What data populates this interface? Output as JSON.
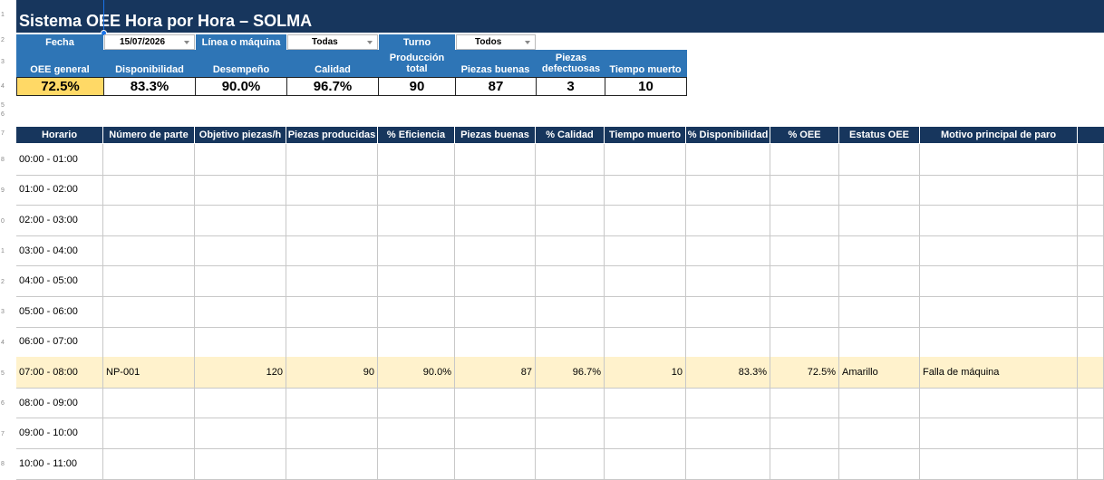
{
  "title": "Sistema OEE Hora por Hora – SOLMA",
  "filters": {
    "fecha_label": "Fecha",
    "fecha_value": "15/07/2026",
    "linea_label": "Línea o máquina",
    "linea_value": "Todas",
    "turno_label": "Turno",
    "turno_value": "Todos"
  },
  "kpis": [
    {
      "label": "OEE general",
      "value": "72.5%"
    },
    {
      "label": "Disponibilidad",
      "value": "83.3%"
    },
    {
      "label": "Desempeño",
      "value": "90.0%"
    },
    {
      "label": "Calidad",
      "value": "96.7%"
    },
    {
      "label": "Producción total",
      "value": "90"
    },
    {
      "label": "Piezas buenas",
      "value": "87"
    },
    {
      "label": "Piezas defectuosas",
      "value": "3"
    },
    {
      "label": "Tiempo muerto",
      "value": "10"
    }
  ],
  "colors": {
    "navy": "#17365d",
    "blue": "#2e75b6",
    "oee_yellow": "#ffd966",
    "row_highlight": "#fff2cc"
  },
  "table": {
    "headers": [
      "Horario",
      "Número de parte",
      "Objetivo piezas/h",
      "Piezas producidas",
      "% Eficiencia",
      "Piezas buenas",
      "% Calidad",
      "Tiempo muerto",
      "% Disponibilidad",
      "% OEE",
      "Estatus OEE",
      "Motivo principal de paro"
    ],
    "rows": [
      [
        "00:00 - 01:00",
        "",
        "",
        "",
        "",
        "",
        "",
        "",
        "",
        "",
        "",
        ""
      ],
      [
        "01:00 - 02:00",
        "",
        "",
        "",
        "",
        "",
        "",
        "",
        "",
        "",
        "",
        ""
      ],
      [
        "02:00 - 03:00",
        "",
        "",
        "",
        "",
        "",
        "",
        "",
        "",
        "",
        "",
        ""
      ],
      [
        "03:00 - 04:00",
        "",
        "",
        "",
        "",
        "",
        "",
        "",
        "",
        "",
        "",
        ""
      ],
      [
        "04:00 - 05:00",
        "",
        "",
        "",
        "",
        "",
        "",
        "",
        "",
        "",
        "",
        ""
      ],
      [
        "05:00 - 06:00",
        "",
        "",
        "",
        "",
        "",
        "",
        "",
        "",
        "",
        "",
        ""
      ],
      [
        "06:00 - 07:00",
        "",
        "",
        "",
        "",
        "",
        "",
        "",
        "",
        "",
        "",
        ""
      ],
      [
        "07:00 - 08:00",
        "NP-001",
        "120",
        "90",
        "90.0%",
        "87",
        "96.7%",
        "10",
        "83.3%",
        "72.5%",
        "Amarillo",
        "Falla de máquina"
      ],
      [
        "08:00 - 09:00",
        "",
        "",
        "",
        "",
        "",
        "",
        "",
        "",
        "",
        "",
        ""
      ],
      [
        "09:00 - 10:00",
        "",
        "",
        "",
        "",
        "",
        "",
        "",
        "",
        "",
        "",
        ""
      ],
      [
        "10:00 - 11:00",
        "",
        "",
        "",
        "",
        "",
        "",
        "",
        "",
        "",
        "",
        ""
      ]
    ]
  },
  "row_numbers": [
    "1",
    "2",
    "3",
    "4",
    "5",
    "6",
    "7",
    "8",
    "9",
    "0",
    "1",
    "2",
    "3",
    "4",
    "5",
    "6",
    "7",
    "8"
  ]
}
